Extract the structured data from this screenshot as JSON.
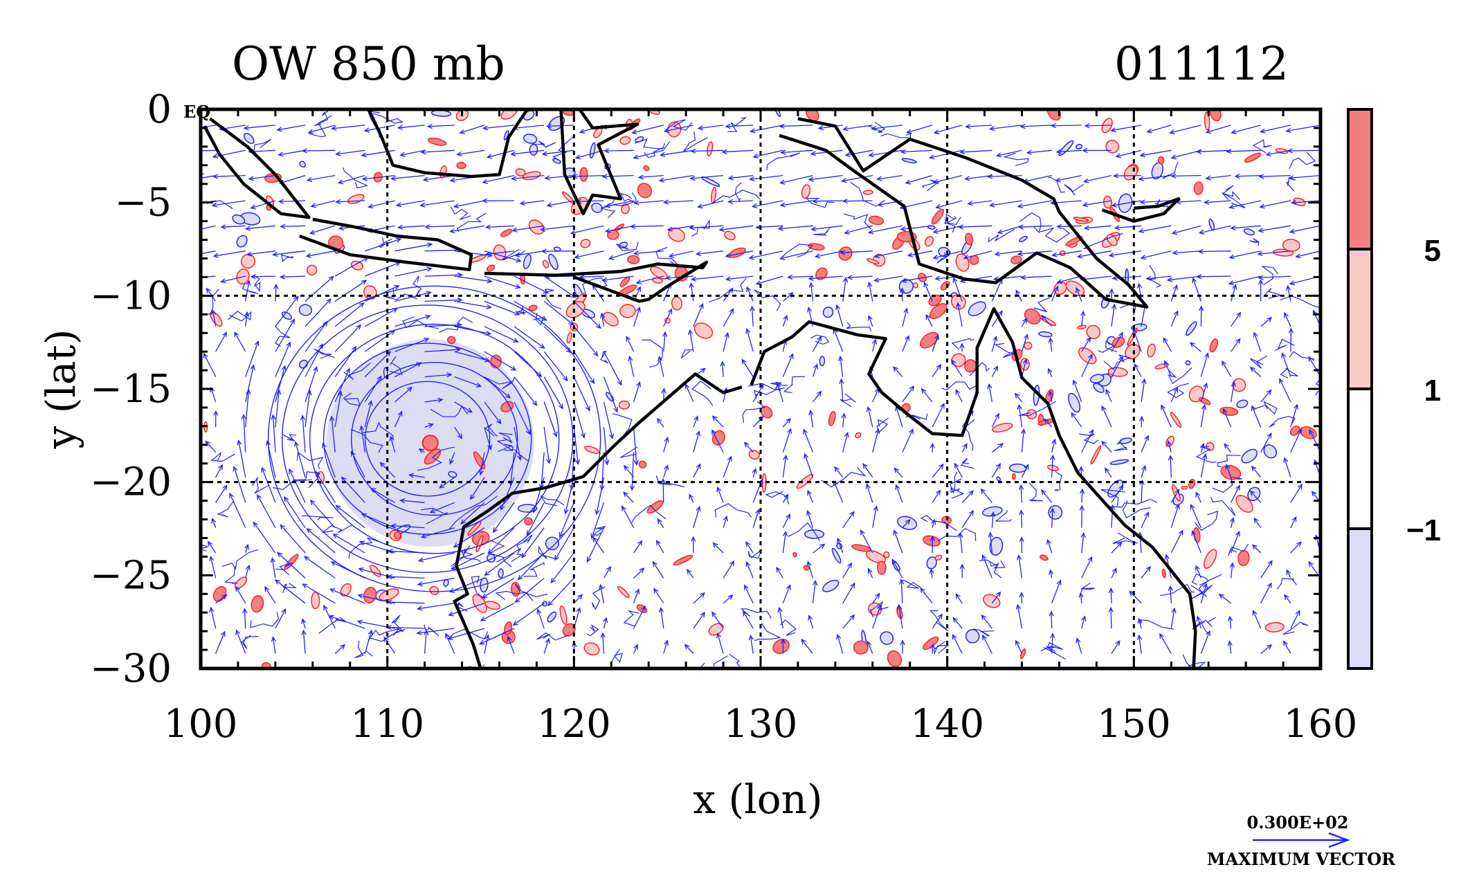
{
  "chart_data": {
    "type": "contour",
    "title_left": "OW 850 mb",
    "title_right": "011112",
    "xlabel": "x (lon)",
    "ylabel": "y (lat)",
    "corner_label": "EQ",
    "xlim": [
      100,
      160
    ],
    "ylim": [
      -30,
      0
    ],
    "x_ticks": [
      100,
      110,
      120,
      130,
      140,
      150,
      160
    ],
    "y_ticks": [
      0,
      -5,
      -10,
      -15,
      -20,
      -25,
      -30
    ],
    "x_tick_labels": [
      "100",
      "110",
      "120",
      "130",
      "140",
      "150",
      "160"
    ],
    "y_tick_labels": [
      "0",
      "−5",
      "−10",
      "−15",
      "−20",
      "−25",
      "−30"
    ],
    "grid_x": [
      110,
      120,
      130,
      140,
      150
    ],
    "grid_y": [
      -10,
      -20
    ],
    "grid": "dashed",
    "colorbar": {
      "position": "right",
      "levels": [
        -1,
        1,
        5
      ],
      "labels": [
        "−1",
        "1",
        "5"
      ],
      "fills": [
        "#dcdcf3",
        "#ffffff",
        "#fbc9c9",
        "#f37f7f"
      ]
    },
    "colors": {
      "positive_contour": "#ff2020",
      "negative_contour": "#2020ff",
      "vectors": "#2020ff",
      "coastline": "#000000"
    },
    "vector_key": {
      "value_label": "0.300E+02",
      "caption": "MAXIMUM VECTOR"
    },
    "cyclone_center": {
      "lon": 112.3,
      "lat": -17.9
    }
  }
}
